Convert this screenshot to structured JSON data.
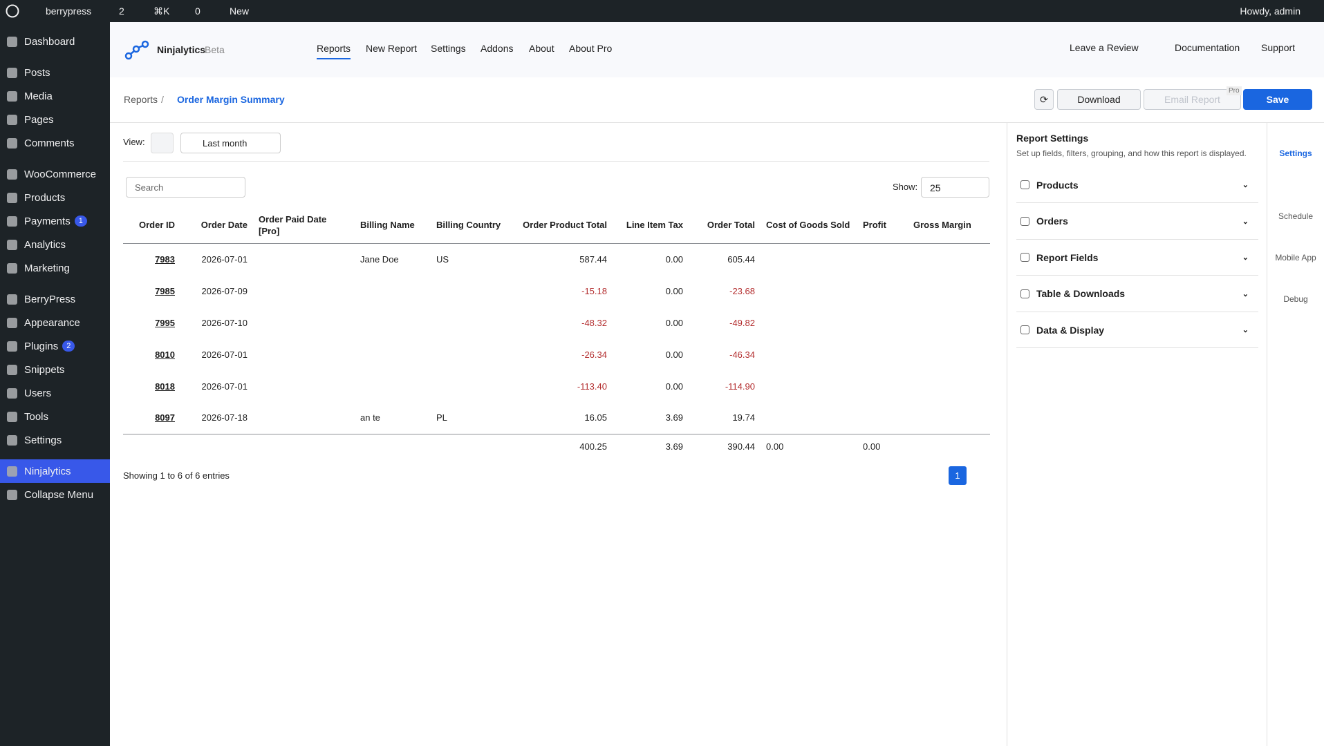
{
  "admin_bar": {
    "site": "berrypress",
    "updates": "2",
    "search": "⌘K",
    "comments": "0",
    "new": "New",
    "howdy": "Howdy, admin"
  },
  "sidebar": {
    "groups": [
      [
        {
          "label": "Dashboard"
        }
      ],
      [
        {
          "label": "Posts"
        },
        {
          "label": "Media"
        },
        {
          "label": "Pages"
        },
        {
          "label": "Comments"
        }
      ],
      [
        {
          "label": "WooCommerce"
        },
        {
          "label": "Products"
        },
        {
          "label": "Payments",
          "badge": "1"
        },
        {
          "label": "Analytics"
        },
        {
          "label": "Marketing"
        }
      ],
      [
        {
          "label": "BerryPress"
        },
        {
          "label": "Appearance"
        },
        {
          "label": "Plugins",
          "badge": "2"
        },
        {
          "label": "Snippets"
        },
        {
          "label": "Users"
        },
        {
          "label": "Tools"
        },
        {
          "label": "Settings"
        }
      ],
      [
        {
          "label": "Ninjalytics"
        },
        {
          "label": "Collapse Menu"
        }
      ]
    ]
  },
  "header": {
    "brand": "Ninjalytics",
    "brand_tag": "Beta",
    "nav": [
      "Reports",
      "New Report",
      "Settings",
      "Addons",
      "About",
      "About Pro"
    ],
    "links": [
      "Leave a Review",
      "Documentation",
      "Support"
    ]
  },
  "breadcrumb": [
    "Reports",
    "Order Margin Summary"
  ],
  "actions": {
    "download": "Download",
    "email": "Email Report",
    "pro": "Pro",
    "save": "Save"
  },
  "view": {
    "label": "View:",
    "range": "Last month"
  },
  "table": {
    "search_placeholder": "Search",
    "show_label": "Show:",
    "show_value": "25",
    "columns": [
      "Order ID",
      "Order Date",
      "Order Paid Date [Pro]",
      "Billing Name",
      "Billing Country",
      "Order Product Total",
      "Line Item Tax",
      "Order Total",
      "Cost of Goods Sold",
      "Profit",
      "Gross Margin"
    ],
    "rows": [
      [
        "7983",
        "2026-07-01",
        null,
        "Jane Doe",
        "US",
        "587.44",
        "0.00",
        "605.44",
        null,
        null,
        null
      ],
      [
        "7985",
        "2026-07-09",
        null,
        null,
        null,
        "-15.18",
        "0.00",
        "-23.68",
        null,
        null,
        null
      ],
      [
        "7995",
        "2026-07-10",
        null,
        null,
        null,
        "-48.32",
        "0.00",
        "-49.82",
        null,
        null,
        null
      ],
      [
        "8010",
        "2026-07-01",
        null,
        null,
        null,
        "-26.34",
        "0.00",
        "-46.34",
        null,
        null,
        null
      ],
      [
        "8018",
        "2026-07-01",
        null,
        null,
        null,
        "-113.40",
        "0.00",
        "-114.90",
        null,
        null,
        null
      ],
      [
        "8097",
        "2026-07-18",
        null,
        "an te",
        "PL",
        "16.05",
        "3.69",
        "19.74",
        null,
        null,
        null
      ]
    ],
    "totals": [
      null,
      null,
      null,
      null,
      null,
      "400.25",
      "3.69",
      "390.44",
      "0.00",
      "0.00",
      null
    ],
    "info": "Showing 1 to 6 of 6 entries",
    "page": "1"
  },
  "settings": {
    "title": "Report Settings",
    "subtitle": "Set up fields, filters, grouping, and how this report is displayed.",
    "sections": [
      "Products",
      "Orders",
      "Report Fields",
      "Table & Downloads",
      "Data & Display"
    ]
  },
  "tabs": [
    "Settings",
    "Schedule",
    "Mobile App",
    "Debug"
  ]
}
